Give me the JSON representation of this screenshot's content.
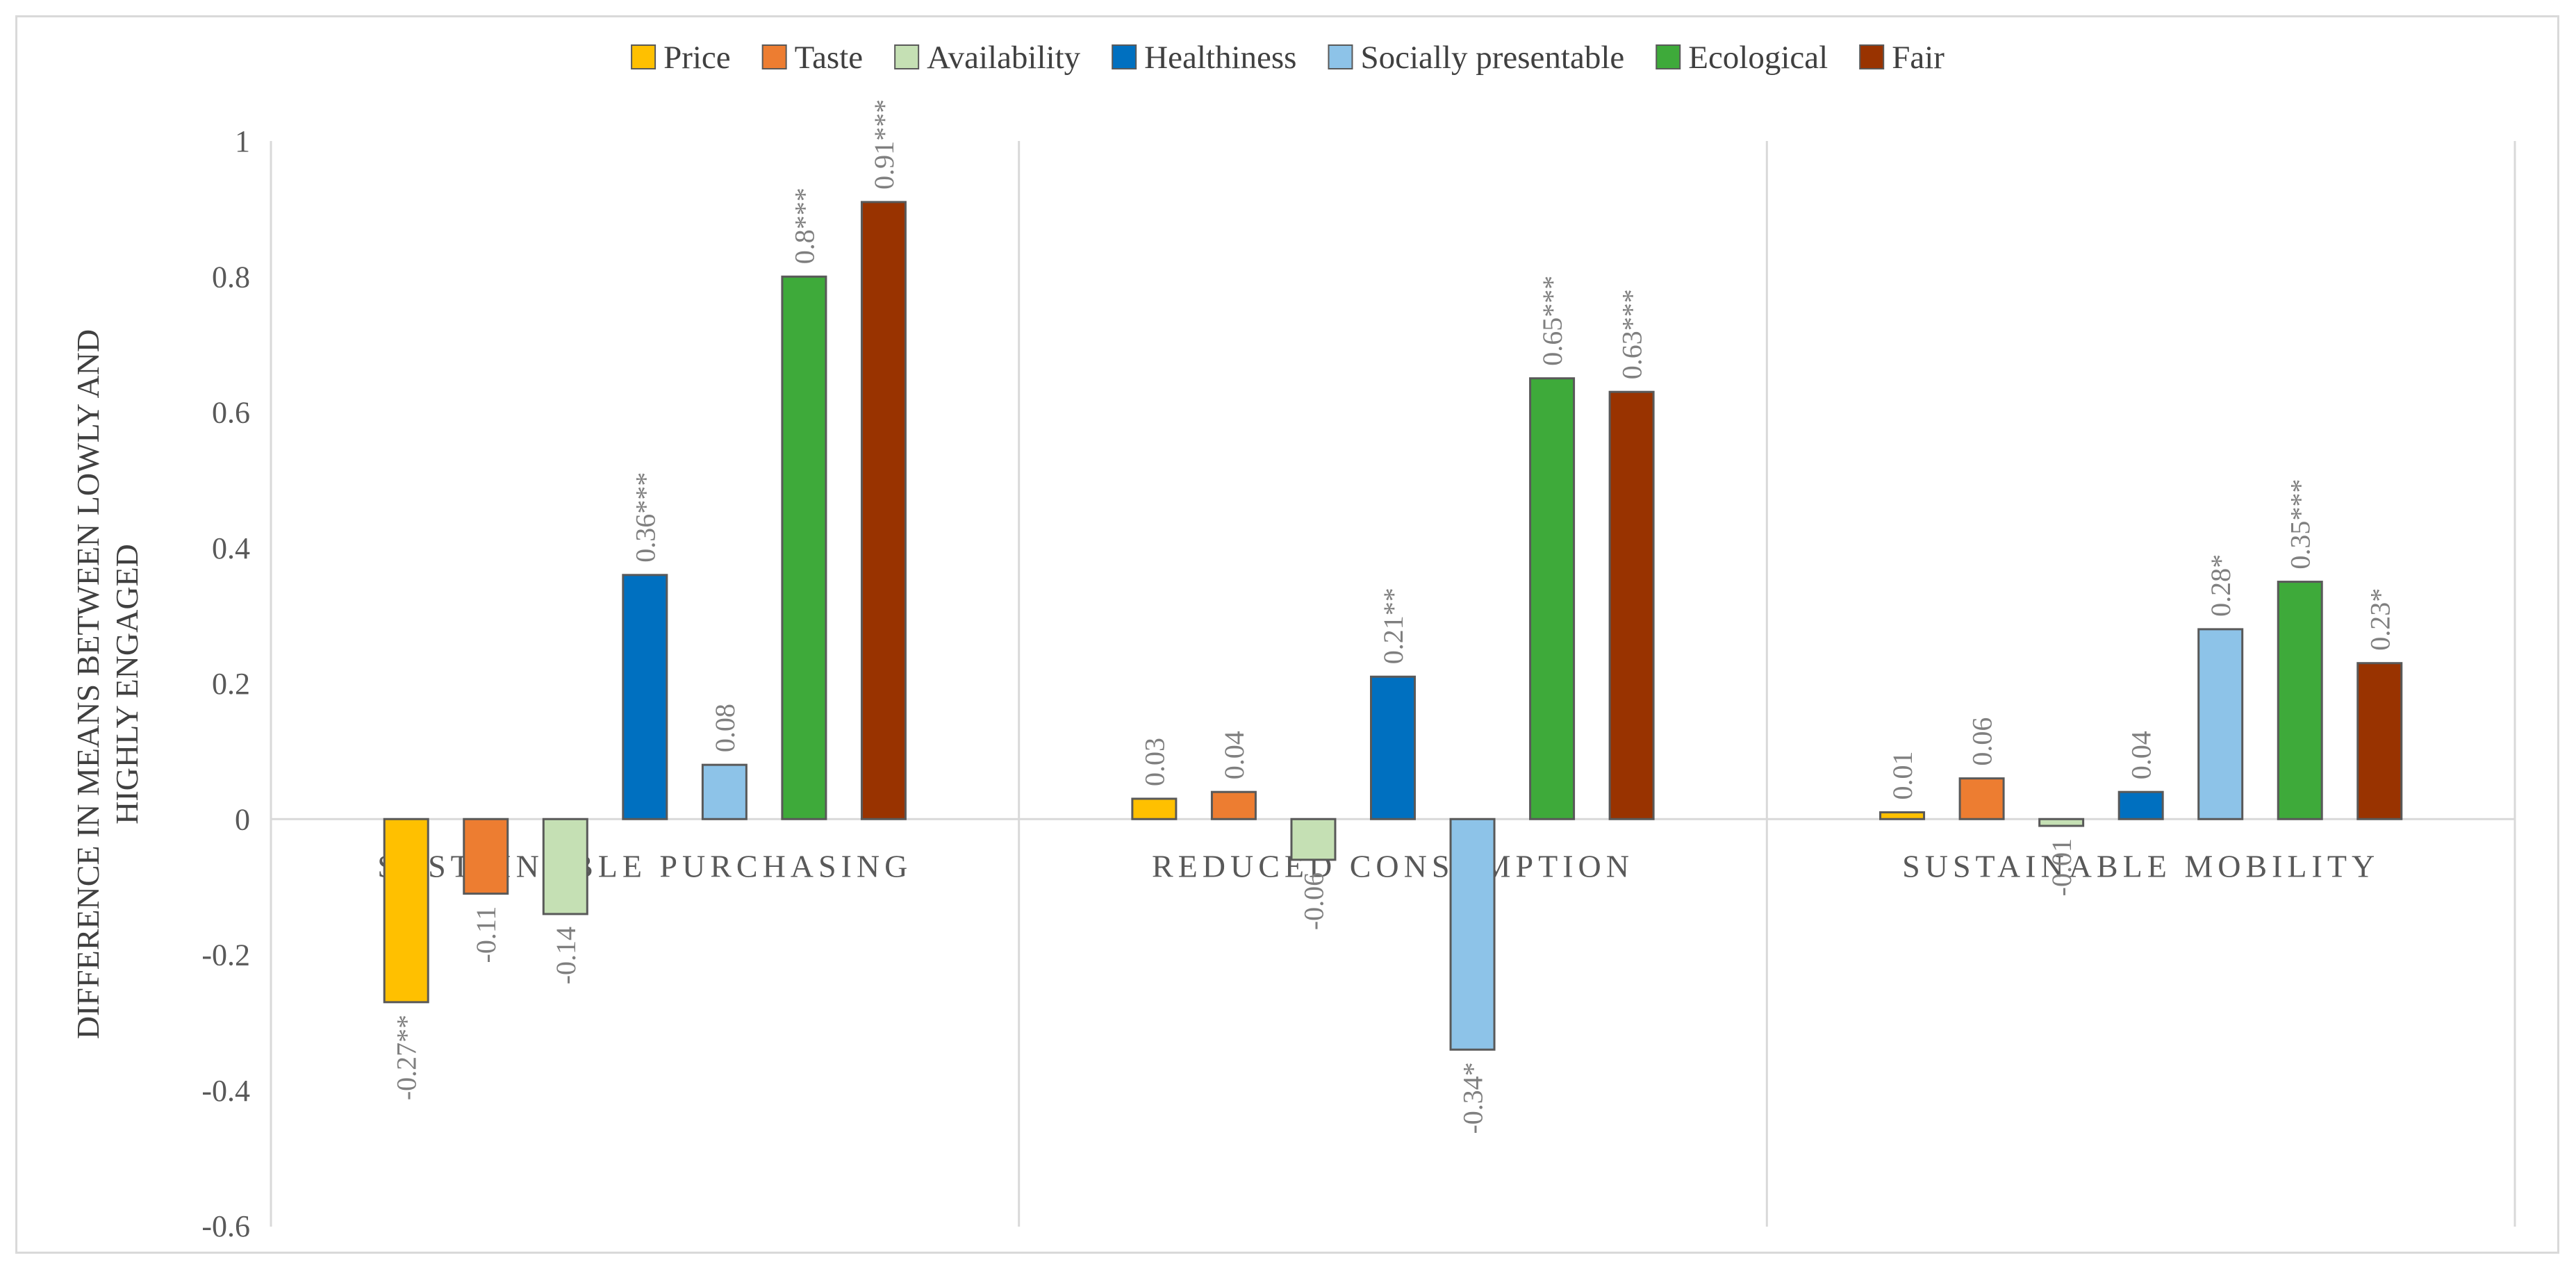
{
  "chart_data": {
    "type": "bar",
    "title": "",
    "xlabel": "",
    "ylabel": [
      "DIFFERENCE IN MEANS BETWEEN LOWLY AND",
      "HIGHLY ENGAGED"
    ],
    "ylim": [
      -0.6,
      1.0
    ],
    "yticks": [
      "-0.6",
      "-0.4",
      "-0.2",
      "0",
      "0.2",
      "0.4",
      "0.6",
      "0.8",
      "1"
    ],
    "grid": false,
    "legend_position": "top",
    "categories": [
      "SUSTAINABLE PURCHASING",
      "REDUCED CONSUMPTION",
      "SUSTAINABLE MOBILITY"
    ],
    "series": [
      {
        "name": "Price",
        "color": "#FFC000",
        "values": [
          -0.27,
          0.03,
          0.01
        ],
        "labels": [
          "-0.27**",
          "0.03",
          "0.01"
        ]
      },
      {
        "name": "Taste",
        "color": "#ED7D31",
        "values": [
          -0.11,
          0.04,
          0.06
        ],
        "labels": [
          "-0.11",
          "0.04",
          "0.06"
        ]
      },
      {
        "name": "Availability",
        "color": "#C5E0B4",
        "values": [
          -0.14,
          -0.06,
          -0.01
        ],
        "labels": [
          "-0.14",
          "-0.06",
          "-0.01"
        ]
      },
      {
        "name": "Healthiness",
        "color": "#0070C0",
        "values": [
          0.36,
          0.21,
          0.04
        ],
        "labels": [
          "0.36***",
          "0.21**",
          "0.04"
        ]
      },
      {
        "name": "Socially presentable",
        "color": "#8DC3E8",
        "values": [
          0.08,
          -0.34,
          0.28
        ],
        "labels": [
          "0.08",
          "-0.34*",
          "0.28*"
        ]
      },
      {
        "name": "Ecological",
        "color": "#3EAA3A",
        "values": [
          0.8,
          0.65,
          0.35
        ],
        "labels": [
          "0.8***",
          "0.65***",
          "0.35***"
        ]
      },
      {
        "name": "Fair",
        "color": "#993300",
        "values": [
          0.91,
          0.63,
          0.23
        ],
        "labels": [
          "0.91***",
          "0.63***",
          "0.23*"
        ]
      }
    ]
  }
}
